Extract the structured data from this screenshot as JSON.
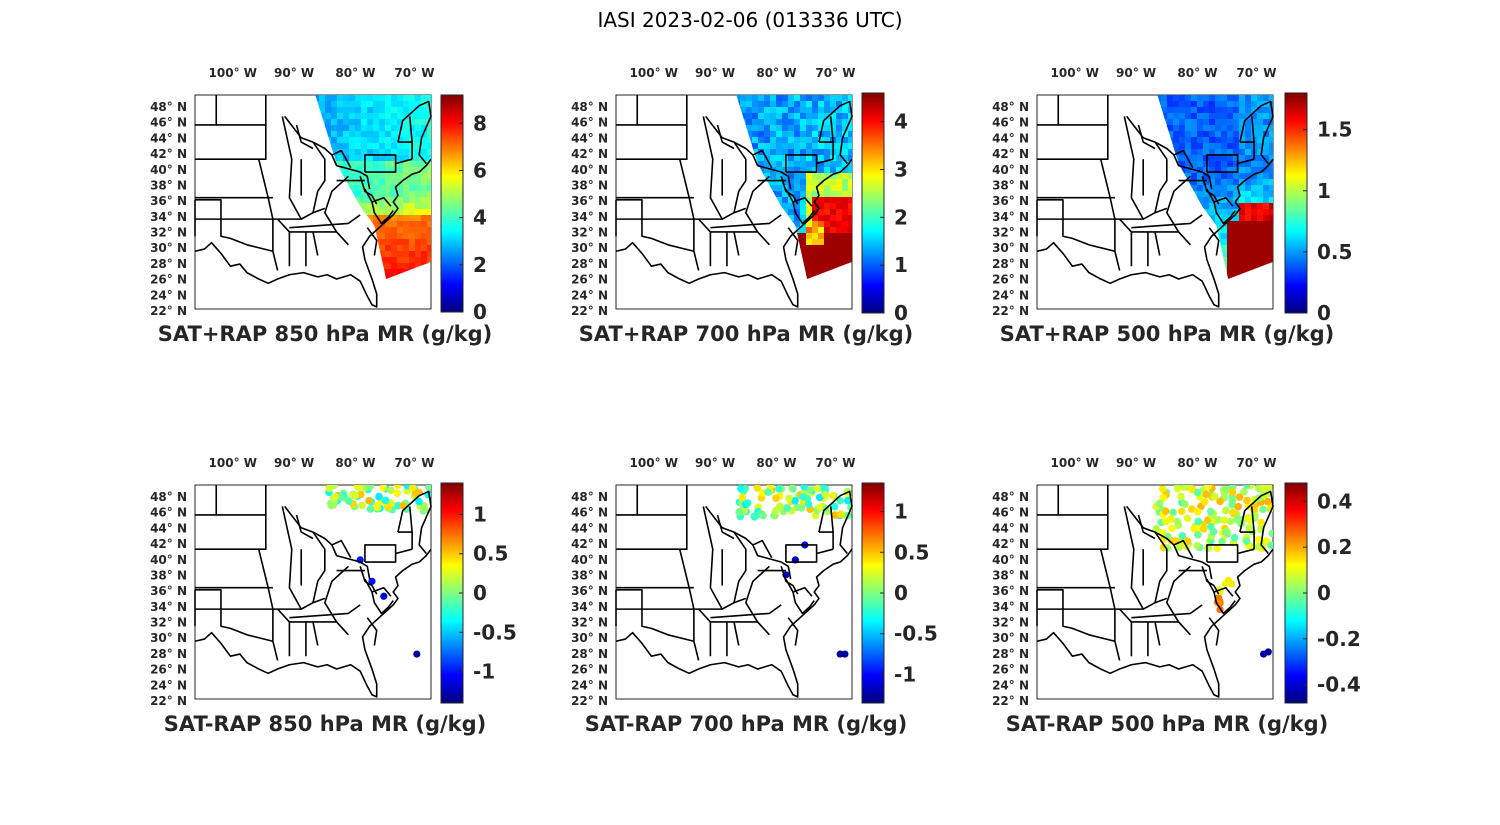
{
  "figure_title": "IASI 2023-02-06 (013336 UTC)",
  "colormap": [
    "#00007f",
    "#0000ff",
    "#007fff",
    "#00ffff",
    "#7fff7f",
    "#ffff00",
    "#ff7f00",
    "#ff0000",
    "#7f0000"
  ],
  "chart_data": [
    {
      "id": "sum850",
      "type": "scatter",
      "kind": "sum",
      "title": "SAT+RAP 850 hPa MR (g/kg)",
      "lon_ticks": [
        "100° W",
        "90° W",
        "80° W",
        "70° W"
      ],
      "lat_ticks": [
        "48° N",
        "46° N",
        "44° N",
        "42° N",
        "40° N",
        "38° N",
        "36° N",
        "34° N",
        "32° N",
        "30° N",
        "28° N",
        "26° N",
        "24° N",
        "22° N"
      ],
      "xlim": [
        -108,
        -66
      ],
      "ylim": [
        22,
        50
      ],
      "clim": [
        0,
        9.2
      ],
      "cbar_ticks": [
        0,
        2,
        4,
        6,
        8
      ],
      "cbar_tick_labels": [
        "0",
        "2",
        "4",
        "6",
        "8"
      ]
    },
    {
      "id": "sum700",
      "type": "scatter",
      "kind": "sum",
      "title": "SAT+RAP 700 hPa MR (g/kg)",
      "lon_ticks": [
        "100° W",
        "90° W",
        "80° W",
        "70° W"
      ],
      "lat_ticks": [
        "48° N",
        "46° N",
        "44° N",
        "42° N",
        "40° N",
        "38° N",
        "36° N",
        "34° N",
        "32° N",
        "30° N",
        "28° N",
        "26° N",
        "24° N",
        "22° N"
      ],
      "xlim": [
        -108,
        -66
      ],
      "ylim": [
        22,
        50
      ],
      "clim": [
        0,
        4.6
      ],
      "cbar_ticks": [
        0,
        1,
        2,
        3,
        4
      ],
      "cbar_tick_labels": [
        "0",
        "1",
        "2",
        "3",
        "4"
      ]
    },
    {
      "id": "sum500",
      "type": "scatter",
      "kind": "sum",
      "title": "SAT+RAP 500 hPa MR (g/kg)",
      "lon_ticks": [
        "100° W",
        "90° W",
        "80° W",
        "70° W"
      ],
      "lat_ticks": [
        "48° N",
        "46° N",
        "44° N",
        "42° N",
        "40° N",
        "38° N",
        "36° N",
        "34° N",
        "32° N",
        "30° N",
        "28° N",
        "26° N",
        "24° N",
        "22° N"
      ],
      "xlim": [
        -108,
        -66
      ],
      "ylim": [
        22,
        50
      ],
      "clim": [
        0,
        1.8
      ],
      "cbar_ticks": [
        0,
        0.5,
        1,
        1.5
      ],
      "cbar_tick_labels": [
        "0",
        "0.5",
        "1",
        "1.5"
      ]
    },
    {
      "id": "diff850",
      "type": "scatter",
      "kind": "diff",
      "title": "SAT-RAP 850 hPa MR (g/kg)",
      "lon_ticks": [
        "100° W",
        "90° W",
        "80° W",
        "70° W"
      ],
      "lat_ticks": [
        "48° N",
        "46° N",
        "44° N",
        "42° N",
        "40° N",
        "38° N",
        "36° N",
        "34° N",
        "32° N",
        "30° N",
        "28° N",
        "26° N",
        "24° N",
        "22° N"
      ],
      "xlim": [
        -108,
        -66
      ],
      "ylim": [
        22,
        50
      ],
      "clim": [
        -1.4,
        1.4
      ],
      "cbar_ticks": [
        -1,
        -0.5,
        0,
        0.5,
        1
      ],
      "cbar_tick_labels": [
        "-1",
        "-0.5",
        "0",
        "0.5",
        "1"
      ]
    },
    {
      "id": "diff700",
      "type": "scatter",
      "kind": "diff",
      "title": "SAT-RAP 700 hPa MR (g/kg)",
      "lon_ticks": [
        "100° W",
        "90° W",
        "80° W",
        "70° W"
      ],
      "lat_ticks": [
        "48° N",
        "46° N",
        "44° N",
        "42° N",
        "40° N",
        "38° N",
        "36° N",
        "34° N",
        "32° N",
        "30° N",
        "28° N",
        "26° N",
        "24° N",
        "22° N"
      ],
      "xlim": [
        -108,
        -66
      ],
      "ylim": [
        22,
        50
      ],
      "clim": [
        -1.35,
        1.35
      ],
      "cbar_ticks": [
        -1,
        -0.5,
        0,
        0.5,
        1
      ],
      "cbar_tick_labels": [
        "-1",
        "-0.5",
        "0",
        "0.5",
        "1"
      ]
    },
    {
      "id": "diff500",
      "type": "scatter",
      "kind": "diff",
      "title": "SAT-RAP 500 hPa MR (g/kg)",
      "lon_ticks": [
        "100° W",
        "90° W",
        "80° W",
        "70° W"
      ],
      "lat_ticks": [
        "48° N",
        "46° N",
        "44° N",
        "42° N",
        "40° N",
        "38° N",
        "36° N",
        "34° N",
        "32° N",
        "30° N",
        "28° N",
        "26° N",
        "24° N",
        "22° N"
      ],
      "xlim": [
        -108,
        -66
      ],
      "ylim": [
        22,
        50
      ],
      "clim": [
        -0.48,
        0.48
      ],
      "cbar_ticks": [
        -0.4,
        -0.2,
        0,
        0.2,
        0.4
      ],
      "cbar_tick_labels": [
        "-0.4",
        "-0.2",
        "0",
        "0.2",
        "0.4"
      ]
    }
  ]
}
